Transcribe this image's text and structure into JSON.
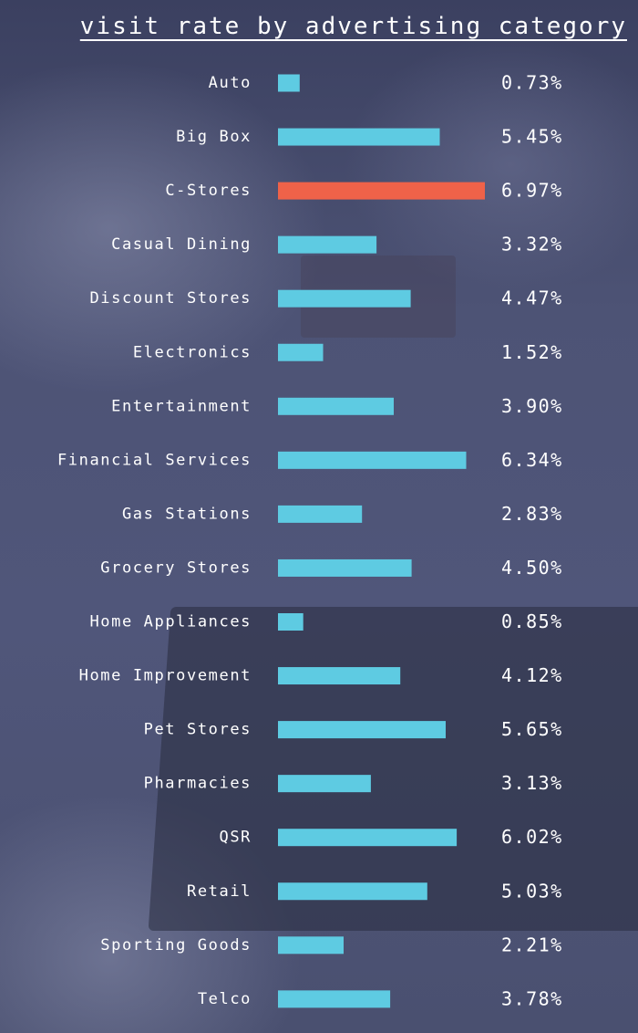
{
  "chart_data": {
    "type": "bar",
    "orientation": "horizontal",
    "title": "visit rate by advertising category",
    "categories": [
      "Auto",
      "Big Box",
      "C-Stores",
      "Casual Dining",
      "Discount Stores",
      "Electronics",
      "Entertainment",
      "Financial Services",
      "Gas Stations",
      "Grocery Stores",
      "Home Appliances",
      "Home Improvement",
      "Pet Stores",
      "Pharmacies",
      "QSR",
      "Retail",
      "Sporting Goods",
      "Telco"
    ],
    "values": [
      0.73,
      5.45,
      6.97,
      3.32,
      4.47,
      1.52,
      3.9,
      6.34,
      2.83,
      4.5,
      0.85,
      4.12,
      5.65,
      3.13,
      6.02,
      5.03,
      2.21,
      3.78
    ],
    "value_labels": [
      "0.73%",
      "5.45%",
      "6.97%",
      "3.32%",
      "4.47%",
      "1.52%",
      "3.90%",
      "6.34%",
      "2.83%",
      "4.50%",
      "0.85%",
      "4.12%",
      "5.65%",
      "3.13%",
      "6.02%",
      "5.03%",
      "2.21%",
      "3.78%"
    ],
    "highlight_category": "C-Stores",
    "colors": {
      "bar": "#5ecbe2",
      "highlight": "#ef6249",
      "text": "#ffffff"
    },
    "grid": false,
    "legend": "none"
  }
}
